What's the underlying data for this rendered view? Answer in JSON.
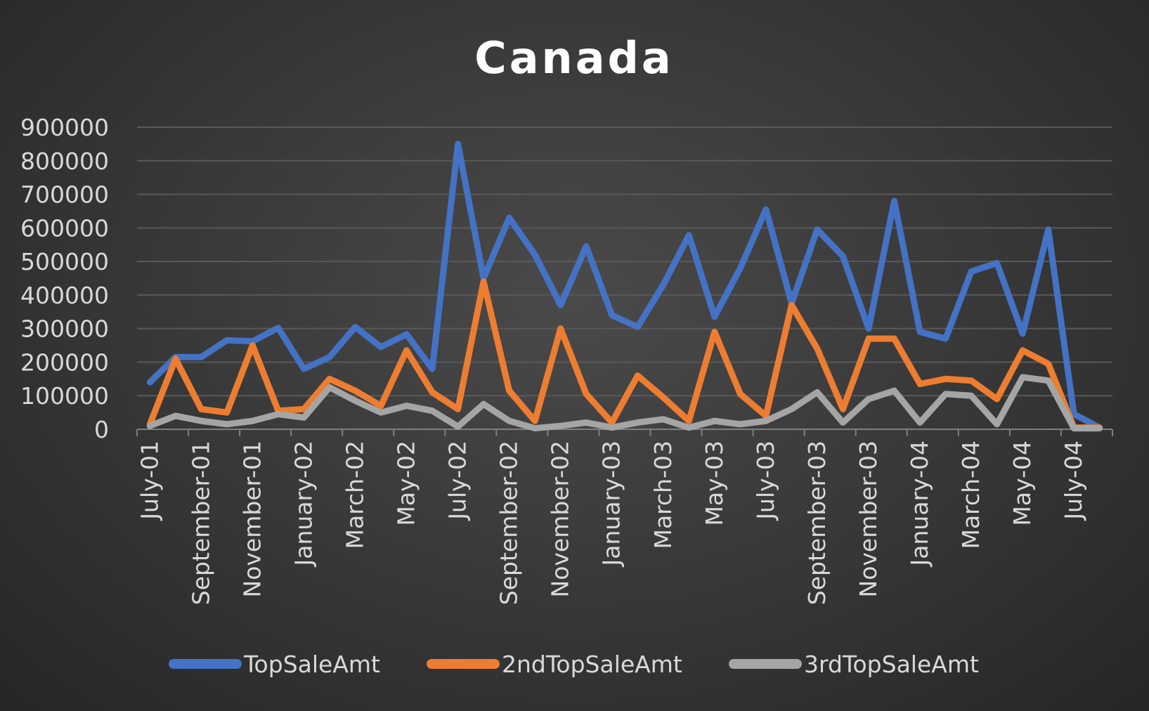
{
  "chart_data": {
    "type": "line",
    "title": "Canada",
    "xlabel": "",
    "ylabel": "",
    "ylim": [
      0,
      900000
    ],
    "yticks": [
      0,
      100000,
      200000,
      300000,
      400000,
      500000,
      600000,
      700000,
      800000,
      900000
    ],
    "grid": true,
    "legend_position": "bottom",
    "x": [
      "July-01",
      "August-01",
      "September-01",
      "October-01",
      "November-01",
      "December-01",
      "January-02",
      "February-02",
      "March-02",
      "April-02",
      "May-02",
      "June-02",
      "July-02",
      "August-02",
      "September-02",
      "October-02",
      "November-02",
      "December-02",
      "January-03",
      "February-03",
      "March-03",
      "April-03",
      "May-03",
      "June-03",
      "July-03",
      "August-03",
      "September-03",
      "October-03",
      "November-03",
      "December-03",
      "January-04",
      "February-04",
      "March-04",
      "April-04",
      "May-04",
      "June-04",
      "July-04",
      "August-04"
    ],
    "x_tick_labels": [
      "July-01",
      "September-01",
      "November-01",
      "January-02",
      "March-02",
      "May-02",
      "July-02",
      "September-02",
      "November-02",
      "January-03",
      "March-03",
      "May-03",
      "July-03",
      "September-03",
      "November-03",
      "January-04",
      "March-04",
      "May-04",
      "July-04"
    ],
    "series": [
      {
        "name": "TopSaleAmt",
        "color": "#4472c4",
        "values": [
          140000,
          215000,
          215000,
          265000,
          262000,
          302000,
          180000,
          215000,
          305000,
          245000,
          283000,
          180000,
          850000,
          450000,
          630000,
          520000,
          370000,
          545000,
          340000,
          305000,
          430000,
          578000,
          335000,
          480000,
          655000,
          375000,
          595000,
          515000,
          300000,
          680000,
          290000,
          270000,
          470000,
          495000,
          285000,
          595000,
          45000,
          5000
        ]
      },
      {
        "name": "2ndTopSaleAmt",
        "color": "#ed7d31",
        "values": [
          15000,
          210000,
          60000,
          50000,
          250000,
          55000,
          60000,
          150000,
          115000,
          70000,
          235000,
          110000,
          60000,
          440000,
          115000,
          25000,
          300000,
          105000,
          20000,
          160000,
          95000,
          25000,
          290000,
          105000,
          40000,
          370000,
          240000,
          60000,
          270000,
          270000,
          135000,
          150000,
          145000,
          90000,
          235000,
          195000,
          5000,
          5000
        ]
      },
      {
        "name": "3rdTopSaleAmt",
        "color": "#a5a5a5",
        "values": [
          10000,
          40000,
          25000,
          15000,
          25000,
          45000,
          35000,
          125000,
          85000,
          50000,
          70000,
          55000,
          8000,
          75000,
          25000,
          3000,
          10000,
          20000,
          5000,
          20000,
          30000,
          5000,
          25000,
          15000,
          25000,
          60000,
          110000,
          20000,
          90000,
          115000,
          20000,
          105000,
          100000,
          15000,
          155000,
          145000,
          3000,
          3000
        ]
      }
    ]
  }
}
